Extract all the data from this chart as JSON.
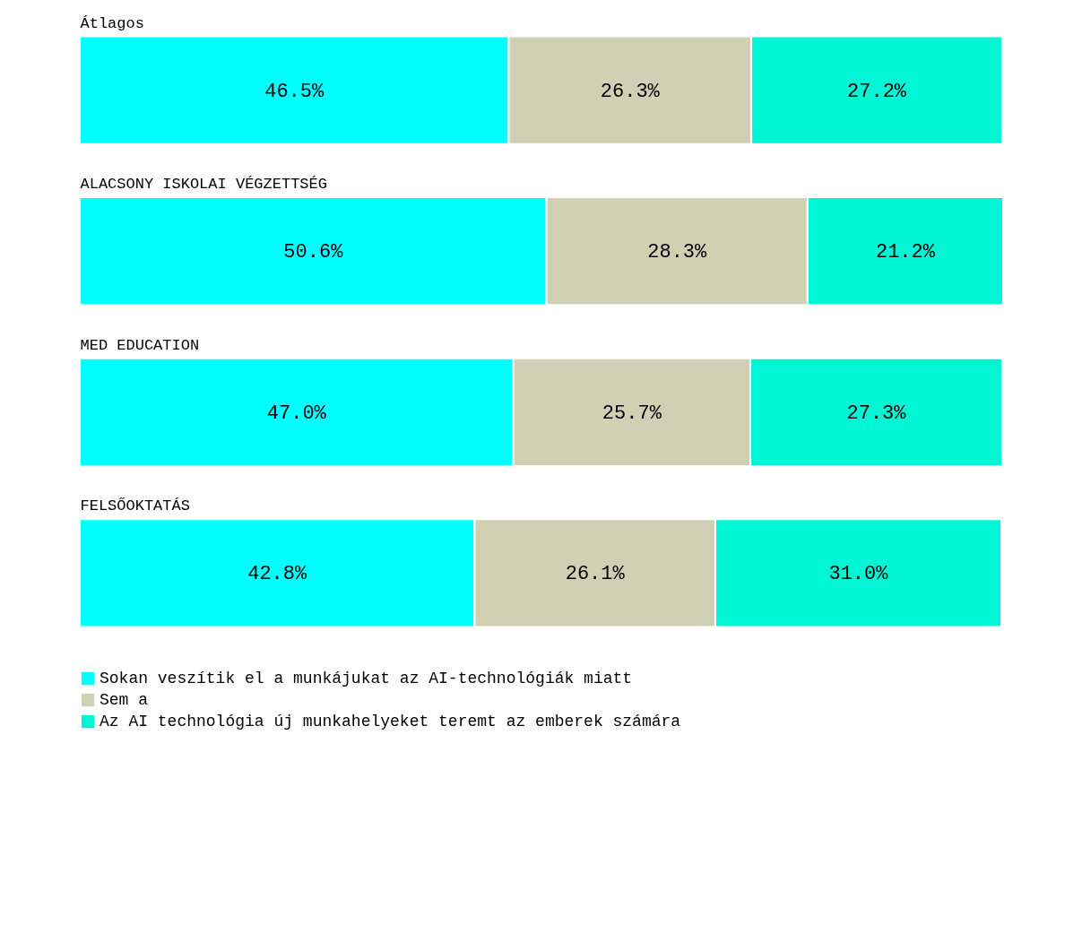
{
  "chart_data": {
    "type": "bar",
    "orientation": "horizontal",
    "stacked": true,
    "legend": "bottom",
    "categories": [
      "Átlagos",
      "ALACSONY ISKOLAI VÉGZETTSÉG",
      "MED EDUCATION",
      "FELSŐOKTATÁS"
    ],
    "series": [
      {
        "name": "Sokan veszítik el a munkájukat az AI-technológiák miatt",
        "color": "#00ffff",
        "values": [
          46.5,
          50.6,
          47.0,
          42.8
        ],
        "value_labels": [
          "46.5%",
          "50.6%",
          "47.0%",
          "42.8%"
        ]
      },
      {
        "name": "Sem a",
        "color": "#d0d0b4",
        "values": [
          26.3,
          28.3,
          25.7,
          26.1
        ],
        "value_labels": [
          "26.3%",
          "28.3%",
          "25.7%",
          "26.1%"
        ]
      },
      {
        "name": "Az AI technológia új munkahelyeket teremt az emberek számára",
        "color": "#00f5d4",
        "values": [
          27.2,
          21.2,
          27.3,
          31.0
        ],
        "value_labels": [
          "27.2%",
          "21.2%",
          "27.3%",
          "31.0%"
        ]
      }
    ]
  }
}
